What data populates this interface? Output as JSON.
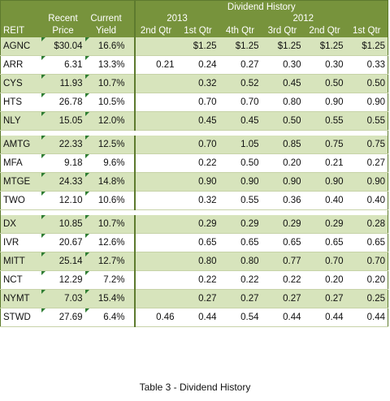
{
  "header": {
    "dividend_history": "Dividend History",
    "year_2013": "2013",
    "year_2012": "2012",
    "reit": "REIT",
    "recent_price": [
      "Recent",
      "Price"
    ],
    "current_yield": [
      "Current",
      "Yield"
    ],
    "quarters": [
      "2nd Qtr",
      "1st Qtr",
      "4th Qtr",
      "3rd Qtr",
      "2nd Qtr",
      "1st Qtr"
    ]
  },
  "groups": [
    [
      {
        "reit": "AGNC",
        "price": "$30.04",
        "yield": "16.6%",
        "q": [
          "",
          "$1.25",
          "$1.25",
          "$1.25",
          "$1.25",
          "$1.25"
        ]
      },
      {
        "reit": "ARR",
        "price": "6.31",
        "yield": "13.3%",
        "q": [
          "0.21",
          "0.24",
          "0.27",
          "0.30",
          "0.30",
          "0.33"
        ]
      },
      {
        "reit": "CYS",
        "price": "11.93",
        "yield": "10.7%",
        "q": [
          "",
          "0.32",
          "0.52",
          "0.45",
          "0.50",
          "0.50"
        ]
      },
      {
        "reit": "HTS",
        "price": "26.78",
        "yield": "10.5%",
        "q": [
          "",
          "0.70",
          "0.70",
          "0.80",
          "0.90",
          "0.90"
        ]
      },
      {
        "reit": "NLY",
        "price": "15.05",
        "yield": "12.0%",
        "q": [
          "",
          "0.45",
          "0.45",
          "0.50",
          "0.55",
          "0.55"
        ]
      }
    ],
    [
      {
        "reit": "AMTG",
        "price": "22.33",
        "yield": "12.5%",
        "q": [
          "",
          "0.70",
          "1.05",
          "0.85",
          "0.75",
          "0.75"
        ]
      },
      {
        "reit": "MFA",
        "price": "9.18",
        "yield": "9.6%",
        "q": [
          "",
          "0.22",
          "0.50",
          "0.20",
          "0.21",
          "0.27"
        ]
      },
      {
        "reit": "MTGE",
        "price": "24.33",
        "yield": "14.8%",
        "q": [
          "",
          "0.90",
          "0.90",
          "0.90",
          "0.90",
          "0.90"
        ]
      },
      {
        "reit": "TWO",
        "price": "12.10",
        "yield": "10.6%",
        "q": [
          "",
          "0.32",
          "0.55",
          "0.36",
          "0.40",
          "0.40"
        ]
      }
    ],
    [
      {
        "reit": "DX",
        "price": "10.85",
        "yield": "10.7%",
        "q": [
          "",
          "0.29",
          "0.29",
          "0.29",
          "0.29",
          "0.28"
        ]
      },
      {
        "reit": "IVR",
        "price": "20.67",
        "yield": "12.6%",
        "q": [
          "",
          "0.65",
          "0.65",
          "0.65",
          "0.65",
          "0.65"
        ]
      },
      {
        "reit": "MITT",
        "price": "25.14",
        "yield": "12.7%",
        "q": [
          "",
          "0.80",
          "0.80",
          "0.77",
          "0.70",
          "0.70"
        ]
      },
      {
        "reit": "NCT",
        "price": "12.29",
        "yield": "7.2%",
        "q": [
          "",
          "0.22",
          "0.22",
          "0.22",
          "0.20",
          "0.20"
        ]
      },
      {
        "reit": "NYMT",
        "price": "7.03",
        "yield": "15.4%",
        "q": [
          "",
          "0.27",
          "0.27",
          "0.27",
          "0.27",
          "0.25"
        ]
      },
      {
        "reit": "STWD",
        "price": "27.69",
        "yield": "6.4%",
        "q": [
          "0.46",
          "0.44",
          "0.54",
          "0.44",
          "0.44",
          "0.44"
        ]
      }
    ]
  ],
  "caption": "Table 3 - Dividend History",
  "colors": {
    "header_green": "#77933c",
    "row_green": "#d7e4bc",
    "border_green": "#5d7a2e"
  }
}
